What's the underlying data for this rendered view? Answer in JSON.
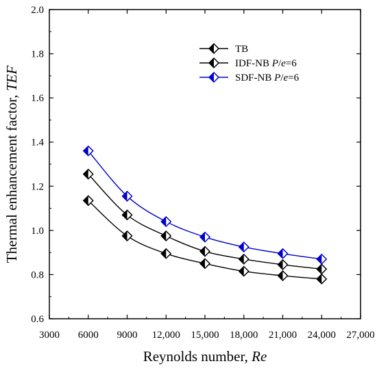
{
  "chart_data": {
    "type": "line",
    "title": "",
    "xlabel": "Reynolds number, ",
    "xlabel_italic": "Re",
    "ylabel": "Thermal enhancement factor, ",
    "ylabel_italic": "TEF",
    "xlim": [
      3000,
      27000
    ],
    "ylim": [
      0.6,
      2.0
    ],
    "xticks": [
      3000,
      6000,
      9000,
      12000,
      15000,
      18000,
      21000,
      24000,
      27000
    ],
    "xtick_labels": [
      "3000",
      "6000",
      "9000",
      "12,000",
      "15,000",
      "18,000",
      "21,000",
      "24,000",
      "27,000"
    ],
    "yticks": [
      0.6,
      0.8,
      1.0,
      1.2,
      1.4,
      1.6,
      1.8,
      2.0
    ],
    "ytick_labels": [
      "0.6",
      "0.8",
      "1.0",
      "1.2",
      "1.4",
      "1.6",
      "1.8",
      "2.0"
    ],
    "grid": false,
    "legend_position": "top-right",
    "series": [
      {
        "name": "TB",
        "name_parts": [
          {
            "text": "TB",
            "italic": false
          }
        ],
        "color": "#000000",
        "marker_fill": "#000000",
        "x": [
          6000,
          9000,
          12000,
          15000,
          18000,
          21000,
          24000
        ],
        "values": [
          1.135,
          0.975,
          0.895,
          0.85,
          0.815,
          0.795,
          0.78
        ]
      },
      {
        "name": "IDF-NB P/e=6",
        "name_parts": [
          {
            "text": "IDF-NB ",
            "italic": false
          },
          {
            "text": "P",
            "italic": true
          },
          {
            "text": "/",
            "italic": false
          },
          {
            "text": "e",
            "italic": true
          },
          {
            "text": "=6",
            "italic": false
          }
        ],
        "color": "#000000",
        "marker_fill": "#000000",
        "x": [
          6000,
          9000,
          12000,
          15000,
          18000,
          21000,
          24000
        ],
        "values": [
          1.255,
          1.07,
          0.975,
          0.905,
          0.87,
          0.845,
          0.825
        ]
      },
      {
        "name": "SDF-NB P/e=6",
        "name_parts": [
          {
            "text": "SDF-NB ",
            "italic": false
          },
          {
            "text": "P",
            "italic": true
          },
          {
            "text": "/",
            "italic": false
          },
          {
            "text": "e",
            "italic": true
          },
          {
            "text": "=6",
            "italic": false
          }
        ],
        "color": "#0000cc",
        "marker_fill": "#0000cc",
        "x": [
          6000,
          9000,
          12000,
          15000,
          18000,
          21000,
          24000
        ],
        "values": [
          1.36,
          1.155,
          1.04,
          0.97,
          0.925,
          0.895,
          0.87
        ]
      }
    ]
  }
}
